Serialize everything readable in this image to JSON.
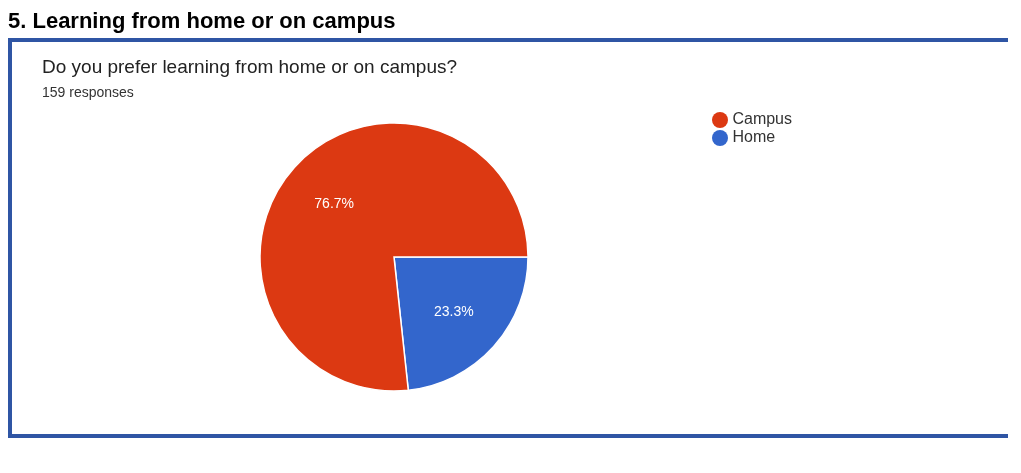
{
  "chart_data": {
    "type": "pie",
    "title": "5. Learning from home or on campus",
    "subtitle": "Do you prefer learning from home or on campus?",
    "annotations": [
      "159 responses"
    ],
    "categories": [
      "Home",
      "Campus"
    ],
    "values": [
      23.3,
      76.7
    ],
    "colors": [
      "#3366cc",
      "#dc3912"
    ],
    "value_labels": [
      "23.3%",
      "76.7%"
    ],
    "legend": "top right"
  }
}
